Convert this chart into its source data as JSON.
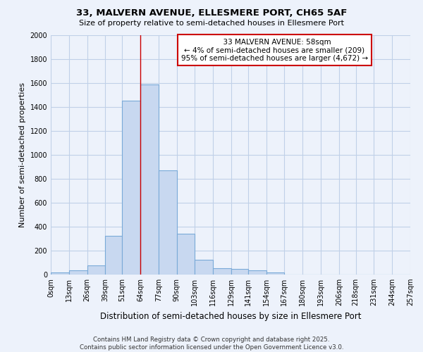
{
  "title1": "33, MALVERN AVENUE, ELLESMERE PORT, CH65 5AF",
  "title2": "Size of property relative to semi-detached houses in Ellesmere Port",
  "xlabel": "Distribution of semi-detached houses by size in Ellesmere Port",
  "ylabel": "Number of semi-detached properties",
  "bar_color": "#c8d8f0",
  "bar_edge_color": "#7aaad8",
  "annotation_text": "  33 MALVERN AVENUE: 58sqm\n← 4% of semi-detached houses are smaller (209)\n95% of semi-detached houses are larger (4,672) →",
  "annotation_box_color": "white",
  "annotation_box_edge": "#cc0000",
  "footer": "Contains HM Land Registry data © Crown copyright and database right 2025.\nContains public sector information licensed under the Open Government Licence v3.0.",
  "bins": [
    0,
    13,
    26,
    39,
    51,
    64,
    77,
    90,
    103,
    116,
    129,
    141,
    154,
    167,
    180,
    193,
    206,
    218,
    231,
    244,
    257
  ],
  "counts": [
    15,
    35,
    75,
    325,
    1450,
    1590,
    870,
    340,
    125,
    55,
    50,
    38,
    20,
    0,
    0,
    0,
    0,
    0,
    0,
    0
  ],
  "property_size": 64,
  "ylim": [
    0,
    2000
  ],
  "bg_color": "#edf2fb",
  "grid_color": "#c0d0e8",
  "vline_color": "#cc0000"
}
